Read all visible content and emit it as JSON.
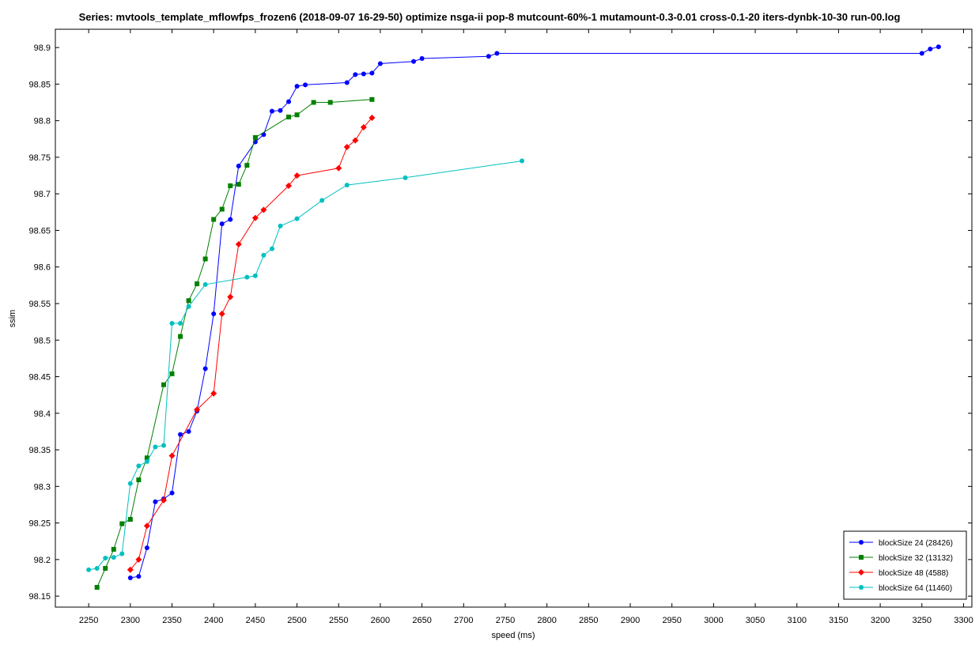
{
  "chart_data": {
    "type": "line",
    "title": "Series: mvtools_template_mflowfps_frozen6 (2018-09-07 16-29-50) optimize nsga-ii pop-8 mutcount-60%-1 mutamount-0.3-0.01 cross-0.1-20 iters-dynbk-10-30 run-00.log",
    "xlabel": "speed (ms)",
    "ylabel": "ssim",
    "xlim": [
      2210,
      3310
    ],
    "ylim": [
      98.135,
      98.925
    ],
    "xticks": [
      "2250",
      "2300",
      "2350",
      "2400",
      "2450",
      "2500",
      "2550",
      "2600",
      "2650",
      "2700",
      "2750",
      "2800",
      "2850",
      "2900",
      "2950",
      "3000",
      "3050",
      "3100",
      "3150",
      "3200",
      "3250",
      "3300"
    ],
    "yticks": [
      "98.15",
      "98.2",
      "98.25",
      "98.3",
      "98.35",
      "98.4",
      "98.45",
      "98.5",
      "98.55",
      "98.6",
      "98.65",
      "98.7",
      "98.75",
      "98.8",
      "98.85",
      "98.9"
    ],
    "legend_position": "bottom-right",
    "grid": false,
    "series": [
      {
        "name": "blockSize 24 (28426)",
        "color": "#0000ff",
        "marker": "circle",
        "points": [
          [
            2300,
            98.175
          ],
          [
            2310,
            98.177
          ],
          [
            2320,
            98.216
          ],
          [
            2330,
            98.279
          ],
          [
            2340,
            98.283
          ],
          [
            2350,
            98.291
          ],
          [
            2360,
            98.371
          ],
          [
            2370,
            98.375
          ],
          [
            2380,
            98.403
          ],
          [
            2390,
            98.461
          ],
          [
            2400,
            98.536
          ],
          [
            2410,
            98.659
          ],
          [
            2420,
            98.665
          ],
          [
            2430,
            98.738
          ],
          [
            2450,
            98.771
          ],
          [
            2460,
            98.781
          ],
          [
            2470,
            98.813
          ],
          [
            2480,
            98.814
          ],
          [
            2490,
            98.826
          ],
          [
            2500,
            98.847
          ],
          [
            2510,
            98.849
          ],
          [
            2560,
            98.852
          ],
          [
            2570,
            98.863
          ],
          [
            2580,
            98.864
          ],
          [
            2590,
            98.865
          ],
          [
            2600,
            98.878
          ],
          [
            2640,
            98.881
          ],
          [
            2650,
            98.885
          ],
          [
            2730,
            98.888
          ],
          [
            2740,
            98.892
          ],
          [
            3250,
            98.892
          ],
          [
            3260,
            98.898
          ],
          [
            3270,
            98.901
          ]
        ]
      },
      {
        "name": "blockSize 32 (13132)",
        "color": "#008000",
        "marker": "square",
        "points": [
          [
            2260,
            98.162
          ],
          [
            2270,
            98.188
          ],
          [
            2280,
            98.214
          ],
          [
            2290,
            98.249
          ],
          [
            2300,
            98.255
          ],
          [
            2310,
            98.309
          ],
          [
            2320,
            98.339
          ],
          [
            2340,
            98.439
          ],
          [
            2350,
            98.454
          ],
          [
            2360,
            98.505
          ],
          [
            2370,
            98.554
          ],
          [
            2380,
            98.577
          ],
          [
            2390,
            98.611
          ],
          [
            2400,
            98.665
          ],
          [
            2410,
            98.679
          ],
          [
            2420,
            98.711
          ],
          [
            2430,
            98.713
          ],
          [
            2440,
            98.739
          ],
          [
            2450,
            98.777
          ],
          [
            2490,
            98.805
          ],
          [
            2500,
            98.808
          ],
          [
            2520,
            98.825
          ],
          [
            2540,
            98.825
          ],
          [
            2590,
            98.829
          ]
        ]
      },
      {
        "name": "blockSize 48 (4588)",
        "color": "#ff0000",
        "marker": "diamond",
        "points": [
          [
            2300,
            98.186
          ],
          [
            2310,
            98.2
          ],
          [
            2320,
            98.246
          ],
          [
            2340,
            98.281
          ],
          [
            2350,
            98.342
          ],
          [
            2380,
            98.405
          ],
          [
            2400,
            98.427
          ],
          [
            2410,
            98.536
          ],
          [
            2420,
            98.559
          ],
          [
            2430,
            98.631
          ],
          [
            2450,
            98.667
          ],
          [
            2460,
            98.678
          ],
          [
            2490,
            98.711
          ],
          [
            2500,
            98.725
          ],
          [
            2550,
            98.735
          ],
          [
            2560,
            98.764
          ],
          [
            2570,
            98.773
          ],
          [
            2580,
            98.791
          ],
          [
            2590,
            98.804
          ]
        ]
      },
      {
        "name": "blockSize 64 (11460)",
        "color": "#00c0c0",
        "marker": "circle",
        "points": [
          [
            2250,
            98.186
          ],
          [
            2260,
            98.188
          ],
          [
            2270,
            98.202
          ],
          [
            2280,
            98.203
          ],
          [
            2290,
            98.208
          ],
          [
            2300,
            98.304
          ],
          [
            2310,
            98.328
          ],
          [
            2320,
            98.334
          ],
          [
            2330,
            98.354
          ],
          [
            2340,
            98.356
          ],
          [
            2350,
            98.523
          ],
          [
            2360,
            98.523
          ],
          [
            2370,
            98.546
          ],
          [
            2390,
            98.576
          ],
          [
            2440,
            98.586
          ],
          [
            2450,
            98.588
          ],
          [
            2460,
            98.616
          ],
          [
            2470,
            98.625
          ],
          [
            2480,
            98.656
          ],
          [
            2500,
            98.666
          ],
          [
            2530,
            98.691
          ],
          [
            2560,
            98.712
          ],
          [
            2630,
            98.722
          ],
          [
            2770,
            98.745
          ]
        ]
      }
    ]
  }
}
